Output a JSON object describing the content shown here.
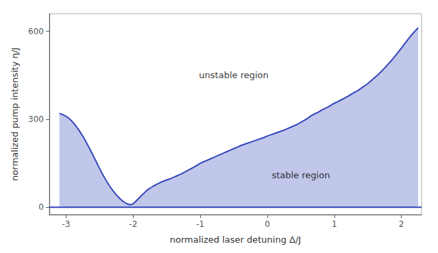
{
  "chart_data": {
    "type": "area",
    "xlabel": "normalized laser detuning Δ/J",
    "ylabel": "normalized pump intensity η/J",
    "x": [
      -3.1,
      -3.05,
      -3.0,
      -2.95,
      -2.9,
      -2.85,
      -2.8,
      -2.75,
      -2.7,
      -2.65,
      -2.6,
      -2.55,
      -2.5,
      -2.45,
      -2.4,
      -2.35,
      -2.3,
      -2.25,
      -2.2,
      -2.15,
      -2.1,
      -2.07,
      -2.04,
      -2.01,
      -1.98,
      -1.95,
      -1.92,
      -1.89,
      -1.86,
      -1.83,
      -1.8,
      -1.75,
      -1.7,
      -1.65,
      -1.6,
      -1.55,
      -1.5,
      -1.45,
      -1.4,
      -1.35,
      -1.3,
      -1.25,
      -1.2,
      -1.15,
      -1.1,
      -1.05,
      -1.0,
      -0.95,
      -0.9,
      -0.85,
      -0.8,
      -0.75,
      -0.7,
      -0.65,
      -0.6,
      -0.55,
      -0.5,
      -0.45,
      -0.4,
      -0.35,
      -0.3,
      -0.25,
      -0.2,
      -0.15,
      -0.1,
      -0.05,
      0.0,
      0.05,
      0.1,
      0.15,
      0.2,
      0.25,
      0.3,
      0.35,
      0.4,
      0.45,
      0.5,
      0.55,
      0.6,
      0.65,
      0.7,
      0.75,
      0.8,
      0.85,
      0.9,
      0.95,
      1.0,
      1.05,
      1.1,
      1.15,
      1.2,
      1.25,
      1.3,
      1.35,
      1.4,
      1.45,
      1.5,
      1.55,
      1.6,
      1.65,
      1.7,
      1.75,
      1.8,
      1.85,
      1.9,
      1.95,
      2.0,
      2.05,
      2.1,
      2.15,
      2.2,
      2.25
    ],
    "values": [
      320,
      316,
      310,
      302,
      290,
      276,
      260,
      242,
      222,
      200,
      178,
      155,
      132,
      110,
      90,
      72,
      56,
      42,
      30,
      20,
      13,
      10,
      9,
      11,
      16,
      23,
      30,
      37,
      44,
      50,
      57,
      65,
      72,
      78,
      84,
      89,
      93,
      97,
      102,
      107,
      112,
      118,
      124,
      130,
      136,
      143,
      150,
      155,
      160,
      165,
      170,
      175,
      180,
      185,
      190,
      195,
      200,
      205,
      210,
      214,
      218,
      222,
      226,
      230,
      234,
      238,
      243,
      247,
      251,
      255,
      259,
      263,
      268,
      273,
      278,
      283,
      290,
      296,
      303,
      312,
      318,
      323,
      330,
      336,
      341,
      348,
      355,
      360,
      366,
      372,
      378,
      385,
      392,
      398,
      406,
      414,
      422,
      432,
      442,
      452,
      463,
      475,
      488,
      500,
      514,
      528,
      543,
      558,
      573,
      587,
      600,
      612
    ],
    "color": "#3344bb",
    "xlim": [
      -3.25,
      2.3
    ],
    "ylim": [
      -25,
      660
    ],
    "xticks": [
      -3,
      -2,
      -1,
      0,
      1,
      2
    ],
    "yticks": [
      0,
      300,
      600
    ],
    "grid": false,
    "hline": 0,
    "annotations": [
      {
        "text": "stable region",
        "x": 0.5,
        "y": 110
      },
      {
        "text": "unstable region",
        "x": -0.5,
        "y": 450
      }
    ]
  }
}
